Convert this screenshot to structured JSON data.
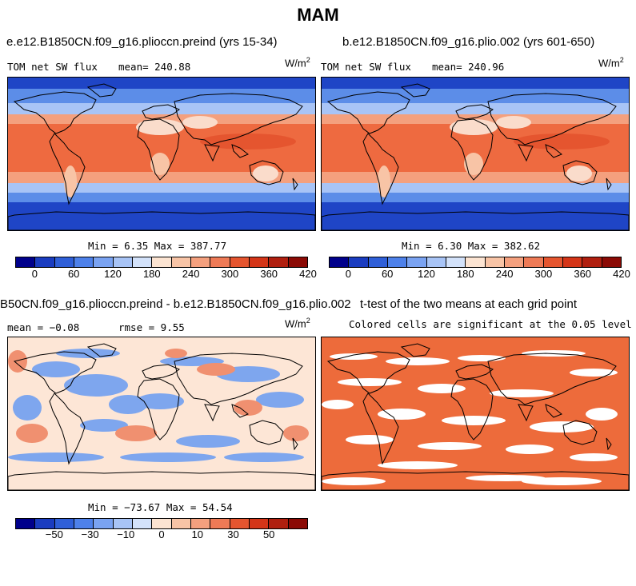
{
  "figure_title": "MAM",
  "panels": {
    "p1": {
      "title": "e.e12.B1850CN.f09_g16.plioccn.preind (yrs 15-34)",
      "variable": "TOM net SW flux",
      "mean_text": "mean= 240.88",
      "units_base": "W/m",
      "units_exp": "2",
      "minmax_text": "Min =   6.35 Max = 387.77"
    },
    "p2": {
      "title": "b.e12.B1850CN.f09_g16.plio.002 (yrs 601-650)",
      "variable": "TOM net SW flux",
      "mean_text": "mean= 240.96",
      "units_base": "W/m",
      "units_exp": "2",
      "minmax_text": "Min =   6.30 Max = 382.62"
    },
    "p3": {
      "title": "B50CN.f09_g16.plioccn.preind - b.e12.B1850CN.f09_g16.plio.002",
      "mean_text": "mean =  −0.08",
      "rmse_text": "rmse =    9.55",
      "units_base": "W/m",
      "units_exp": "2",
      "minmax_text": "Min = −73.67 Max =  54.54"
    },
    "p4": {
      "title": "t-test of the two means at each grid point",
      "subtitle": "Colored cells are significant at the 0.05 level"
    }
  },
  "colorbars": {
    "abs": {
      "colors": [
        "#00008b",
        "#1a3cc0",
        "#2f5fd8",
        "#4e81ea",
        "#7aa3f2",
        "#a8c4f6",
        "#d3e2fa",
        "#fce4d2",
        "#f8c4a6",
        "#f4a07e",
        "#ee7a56",
        "#e5552f",
        "#d43518",
        "#b01f0f",
        "#8b0a05"
      ],
      "ticks": [
        "0",
        "60",
        "120",
        "180",
        "240",
        "300",
        "360",
        "420"
      ]
    },
    "diff": {
      "colors": [
        "#00008b",
        "#1a3cc0",
        "#2f5fd8",
        "#4e81ea",
        "#7aa3f2",
        "#a8c4f6",
        "#d3e2fa",
        "#fce4d2",
        "#f8c4a6",
        "#f4a07e",
        "#ee7a56",
        "#e5552f",
        "#d43518",
        "#b01f0f",
        "#8b0a05"
      ],
      "ticks": [
        "−50",
        "−30",
        "−10",
        "0",
        "10",
        "30",
        "50"
      ]
    }
  },
  "map_colors": {
    "ocean_pole": "#1f45c6",
    "ocean_mid": "#5c8de8",
    "tropics": "#ee6a40",
    "subtropics": "#f4a07e",
    "land_desert": "#fadccb",
    "diff_base": "#fde6d6",
    "diff_blue": "#7ea6ee",
    "diff_red": "#f09070",
    "sig_fill": "#ed6b3b"
  }
}
